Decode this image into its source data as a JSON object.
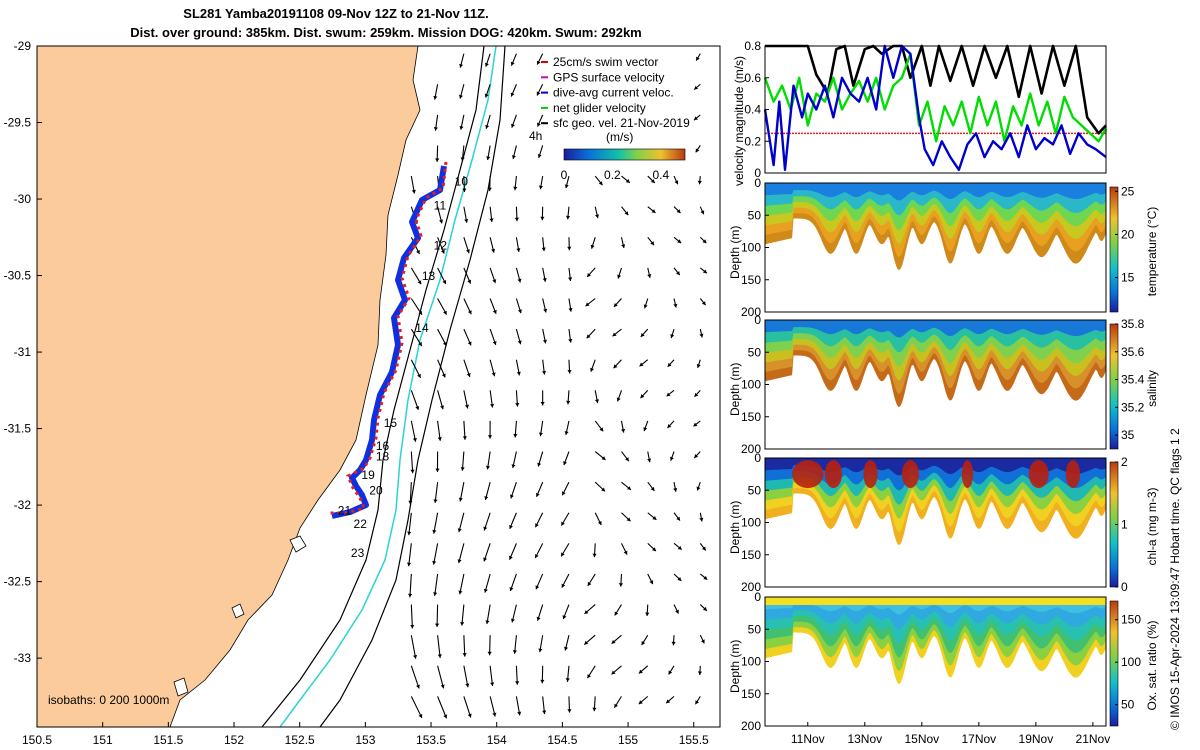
{
  "header": {
    "title_line1": "SL281 Yamba20191108 09-Nov 12Z to 21-Nov 11Z.",
    "title_line2": "Dist. over ground: 385km. Dist. swum: 259km. Mission DOG: 420km. Swum: 292km"
  },
  "map": {
    "xticks": [
      "150.5",
      "151",
      "151.5",
      "152",
      "152.5",
      "153",
      "153.5",
      "154",
      "154.5",
      "155",
      "155.5"
    ],
    "xtick_values": [
      150.5,
      151,
      151.5,
      152,
      152.5,
      153,
      153.5,
      154,
      154.5,
      155,
      155.5
    ],
    "yticks": [
      "-29",
      "-29.5",
      "-30",
      "-30.5",
      "-31",
      "-31.5",
      "-32",
      "-32.5",
      "-33"
    ],
    "ytick_values": [
      -29,
      -29.5,
      -30,
      -30.5,
      -31,
      -31.5,
      -32,
      -32.5,
      -33
    ],
    "xlim": [
      150.5,
      155.7
    ],
    "ylim": [
      -33.45,
      -29
    ],
    "legend": [
      {
        "label": "25cm/s swim vector",
        "color": "#dd0000"
      },
      {
        "label": "GPS surface velocity",
        "color": "#cc00cc"
      },
      {
        "label": "dive-avg current veloc.",
        "color": "#0000cc"
      },
      {
        "label": "net glider velocity",
        "color": "#00cc00"
      },
      {
        "label": "sfc geo. vel. 21-Nov-2019",
        "color": "#000000"
      }
    ],
    "colorbar_title": "(m/s)",
    "colorbar_ticks": [
      "0",
      "0.2",
      "0.4"
    ],
    "colorbar_tick_values": [
      0,
      0.2,
      0.4
    ],
    "colorbar_range": [
      0,
      0.5
    ],
    "time_marker_label": "4h",
    "isobaths_label": "isobaths: 0   200  1000m",
    "day_labels": [
      {
        "text": "10",
        "lon": 153.68,
        "lat": -29.91
      },
      {
        "text": "11",
        "lon": 153.52,
        "lat": -30.07
      },
      {
        "text": "12",
        "lon": 153.52,
        "lat": -30.33
      },
      {
        "text": "13",
        "lon": 153.43,
        "lat": -30.53
      },
      {
        "text": "14",
        "lon": 153.38,
        "lat": -30.87
      },
      {
        "text": "15",
        "lon": 153.14,
        "lat": -31.49
      },
      {
        "text": "16",
        "lon": 153.08,
        "lat": -31.64
      },
      {
        "text": "18",
        "lon": 153.08,
        "lat": -31.71
      },
      {
        "text": "19",
        "lon": 152.97,
        "lat": -31.83
      },
      {
        "text": "20",
        "lon": 153.03,
        "lat": -31.93
      },
      {
        "text": "21",
        "lon": 152.79,
        "lat": -32.06
      },
      {
        "text": "22",
        "lon": 152.91,
        "lat": -32.15
      },
      {
        "text": "23",
        "lon": 152.89,
        "lat": -32.34
      }
    ]
  },
  "velocity_panel": {
    "ylabel": "velocity magnitude (m/s)",
    "yticks": [
      "0",
      "0.2",
      "0.4",
      "0.6",
      "0.8"
    ],
    "ytick_values": [
      0,
      0.2,
      0.4,
      0.6,
      0.8
    ],
    "ylim": [
      0,
      0.8
    ],
    "reference_line": 0.25
  },
  "sections": [
    {
      "name": "temperature",
      "clabel": "temperature (°C)",
      "cticks": [
        "15",
        "20",
        "25"
      ],
      "ctick_values": [
        15,
        20,
        25
      ],
      "crange": [
        11,
        25.5
      ]
    },
    {
      "name": "salinity",
      "clabel": "salinity",
      "cticks": [
        "35",
        "35.2",
        "35.4",
        "35.6",
        "35.8"
      ],
      "ctick_values": [
        35,
        35.2,
        35.4,
        35.6,
        35.8
      ],
      "crange": [
        34.9,
        35.8
      ]
    },
    {
      "name": "chla",
      "clabel": "chl-a (mg m-3)",
      "cticks": [
        "0",
        "1",
        "2"
      ],
      "ctick_values": [
        0,
        1,
        2
      ],
      "crange": [
        0,
        2
      ]
    },
    {
      "name": "oxygen",
      "clabel": "Ox. sat. ratio (%)",
      "cticks": [
        "50",
        "100",
        "150"
      ],
      "ctick_values": [
        50,
        100,
        150
      ],
      "crange": [
        25,
        172
      ]
    }
  ],
  "depth_axis": {
    "ylabel": "Depth (m)",
    "yticks": [
      "0",
      "50",
      "100",
      "150",
      "200"
    ],
    "ytick_values": [
      0,
      50,
      100,
      150,
      200
    ],
    "ylim": [
      0,
      200
    ]
  },
  "time_axis": {
    "xticks": [
      "11Nov",
      "13Nov",
      "15Nov",
      "17Nov",
      "19Nov",
      "21Nov"
    ],
    "xtick_values": [
      11,
      13,
      15,
      17,
      19,
      21
    ],
    "xlim": [
      9.5,
      21.46
    ]
  },
  "chart_data": {
    "type": "line",
    "title": "SL281 Yamba20191108 09-Nov 12Z to 21-Nov 11Z.",
    "series": [
      {
        "name": "black",
        "color": "#000000",
        "x": [
          9.5,
          9.9,
          10.3,
          10.7,
          11.0,
          11.3,
          11.7,
          12.0,
          12.3,
          12.6,
          13.0,
          13.3,
          13.6,
          14.0,
          14.3,
          14.6,
          15.0,
          15.3,
          15.6,
          16.0,
          16.4,
          16.8,
          17.2,
          17.6,
          18.0,
          18.4,
          18.8,
          19.2,
          19.6,
          20.0,
          20.4,
          20.8,
          21.2,
          21.46
        ],
        "values": [
          0.8,
          0.8,
          0.8,
          0.8,
          0.8,
          0.62,
          0.5,
          0.78,
          0.8,
          0.55,
          0.78,
          0.8,
          0.75,
          0.8,
          0.8,
          0.6,
          0.8,
          0.55,
          0.8,
          0.58,
          0.8,
          0.55,
          0.8,
          0.6,
          0.8,
          0.48,
          0.8,
          0.5,
          0.8,
          0.55,
          0.8,
          0.35,
          0.25,
          0.3
        ]
      },
      {
        "name": "green",
        "color": "#00dd00",
        "x": [
          9.5,
          9.8,
          10.1,
          10.4,
          10.7,
          11.0,
          11.3,
          11.6,
          11.9,
          12.2,
          12.5,
          12.8,
          13.1,
          13.4,
          13.7,
          14.0,
          14.3,
          14.6,
          14.9,
          15.2,
          15.5,
          15.8,
          16.1,
          16.4,
          16.7,
          17.0,
          17.3,
          17.6,
          17.9,
          18.2,
          18.5,
          18.8,
          19.1,
          19.4,
          19.7,
          20.0,
          20.3,
          20.6,
          20.9,
          21.2,
          21.46
        ],
        "values": [
          0.6,
          0.45,
          0.55,
          0.4,
          0.6,
          0.3,
          0.5,
          0.45,
          0.6,
          0.4,
          0.5,
          0.58,
          0.45,
          0.6,
          0.4,
          0.55,
          0.6,
          0.75,
          0.3,
          0.45,
          0.2,
          0.42,
          0.3,
          0.45,
          0.25,
          0.48,
          0.3,
          0.45,
          0.2,
          0.42,
          0.3,
          0.5,
          0.3,
          0.45,
          0.25,
          0.48,
          0.35,
          0.3,
          0.25,
          0.2,
          0.28
        ]
      },
      {
        "name": "blue",
        "color": "#0000cc",
        "x": [
          9.5,
          9.8,
          10.0,
          10.2,
          10.5,
          10.8,
          11.0,
          11.3,
          11.6,
          11.9,
          12.2,
          12.5,
          12.8,
          13.1,
          13.4,
          13.7,
          14.0,
          14.3,
          14.6,
          14.9,
          15.1,
          15.4,
          15.7,
          16.0,
          16.3,
          16.6,
          16.9,
          17.2,
          17.5,
          17.8,
          18.1,
          18.4,
          18.7,
          19.0,
          19.3,
          19.6,
          19.9,
          20.2,
          20.5,
          20.8,
          21.1,
          21.46
        ],
        "values": [
          0.4,
          0.05,
          0.45,
          0.02,
          0.55,
          0.35,
          0.5,
          0.4,
          0.55,
          0.35,
          0.6,
          0.5,
          0.45,
          0.6,
          0.4,
          0.8,
          0.6,
          0.8,
          0.75,
          0.35,
          0.15,
          0.05,
          0.2,
          0.1,
          0.02,
          0.18,
          0.25,
          0.1,
          0.2,
          0.15,
          0.25,
          0.1,
          0.3,
          0.15,
          0.22,
          0.18,
          0.3,
          0.12,
          0.25,
          0.18,
          0.15,
          0.1
        ]
      }
    ],
    "xlabel": "",
    "ylabel": "velocity magnitude (m/s)",
    "ylim": [
      0,
      0.8
    ]
  },
  "copyright": "© IMOS 15-Apr-2024 13:09:47 Hobart time. QC flags 1  2"
}
